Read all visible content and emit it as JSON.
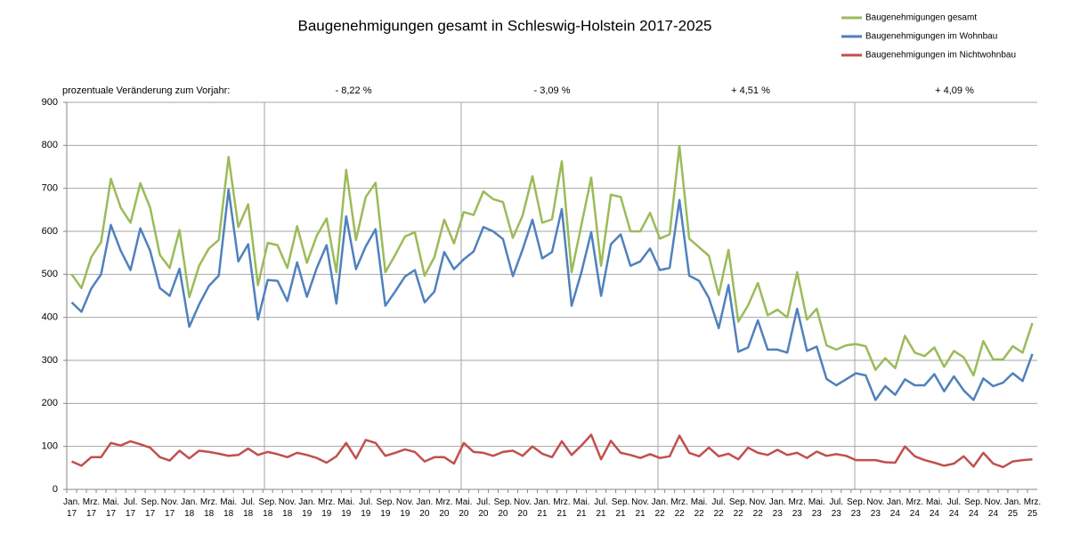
{
  "chart_data": {
    "type": "line",
    "title": "Baugenehmigungen gesamt in Schleswig-Holstein 2017-2025",
    "annotations": [
      "prozentuale Veränderung zum Vorjahr:",
      "- 8,22 %",
      "- 3,09 %",
      "+ 4,51 %",
      "+ 4,09 %"
    ],
    "categories": [
      "Jan. 17",
      null,
      "Mrz. 17",
      null,
      "Mai. 17",
      null,
      "Jul. 17",
      null,
      "Sep. 17",
      null,
      "Nov. 17",
      null,
      "Jan. 18",
      null,
      "Mrz. 18",
      null,
      "Mai. 18",
      null,
      "Jul. 18",
      null,
      "Sep. 18",
      null,
      "Nov. 18",
      null,
      "Jan. 19",
      null,
      "Mrz. 19",
      null,
      "Mai. 19",
      null,
      "Jul. 19",
      null,
      "Sep. 19",
      null,
      "Nov. 19",
      null,
      "Jan. 20",
      null,
      "Mrz. 20",
      null,
      "Mai. 20",
      null,
      "Jul. 20",
      null,
      "Sep. 20",
      null,
      "Nov. 20",
      null,
      "Jan. 21",
      null,
      "Mrz. 21",
      null,
      "Mai. 21",
      null,
      "Jul. 21",
      null,
      "Sep. 21",
      null,
      "Nov. 21",
      null,
      "Jan. 22",
      null,
      "Mrz. 22",
      null,
      "Mai. 22",
      null,
      "Jul. 22",
      null,
      "Sep. 22",
      null,
      "Nov. 22",
      null,
      "Jan. 23",
      null,
      "Mrz. 23",
      null,
      "Mai. 23",
      null,
      "Jul. 23",
      null,
      "Sep. 23",
      null,
      "Nov. 23",
      null,
      "Jan. 24",
      null,
      "Mrz. 24",
      null,
      "Mai. 24",
      null,
      "Jul. 24",
      null,
      "Sep. 24",
      null,
      "Nov. 24",
      null,
      "Jan. 25",
      null,
      "Mrz. 25"
    ],
    "series": [
      {
        "name": "Baugenehmigungen gesamt",
        "color": "#9bbb59",
        "values": [
          500,
          468,
          540,
          575,
          722,
          655,
          620,
          712,
          655,
          545,
          515,
          603,
          447,
          520,
          560,
          580,
          773,
          610,
          663,
          475,
          573,
          568,
          515,
          612,
          527,
          590,
          630,
          505,
          743,
          580,
          680,
          713,
          505,
          545,
          588,
          598,
          497,
          540,
          627,
          572,
          645,
          638,
          693,
          675,
          668,
          585,
          637,
          728,
          620,
          628,
          763,
          505,
          615,
          725,
          520,
          685,
          680,
          600,
          600,
          643,
          583,
          593,
          798,
          583,
          563,
          543,
          452,
          557,
          390,
          428,
          480,
          405,
          418,
          400,
          505,
          395,
          420,
          335,
          325,
          335,
          338,
          333,
          278,
          305,
          282,
          357,
          318,
          310,
          330,
          285,
          322,
          307,
          265,
          345,
          302,
          302,
          333,
          318,
          387
        ]
      },
      {
        "name": "Baugenehmigungen im Wohnbau",
        "color": "#4f81bd",
        "values": [
          435,
          413,
          467,
          500,
          615,
          555,
          510,
          607,
          555,
          468,
          450,
          513,
          378,
          430,
          473,
          497,
          697,
          530,
          570,
          395,
          487,
          485,
          438,
          528,
          448,
          515,
          568,
          432,
          635,
          512,
          565,
          605,
          427,
          460,
          495,
          510,
          435,
          460,
          552,
          512,
          535,
          553,
          610,
          600,
          582,
          496,
          558,
          627,
          537,
          552,
          652,
          427,
          505,
          598,
          450,
          570,
          593,
          520,
          530,
          560,
          510,
          515,
          673,
          497,
          485,
          445,
          375,
          475,
          320,
          330,
          393,
          325,
          325,
          318,
          420,
          322,
          332,
          257,
          242,
          256,
          270,
          265,
          208,
          240,
          220,
          256,
          242,
          242,
          268,
          228,
          263,
          230,
          208,
          258,
          240,
          248,
          270,
          252,
          315
        ]
      },
      {
        "name": "Baugenehmigungen im Nichtwohnbau",
        "color": "#c0504d",
        "values": [
          65,
          55,
          75,
          75,
          108,
          102,
          112,
          105,
          97,
          75,
          67,
          90,
          72,
          90,
          87,
          83,
          78,
          80,
          95,
          80,
          87,
          82,
          75,
          85,
          80,
          73,
          62,
          77,
          108,
          72,
          115,
          108,
          78,
          85,
          93,
          87,
          65,
          75,
          75,
          60,
          108,
          87,
          85,
          78,
          87,
          90,
          78,
          100,
          83,
          75,
          112,
          80,
          102,
          127,
          70,
          113,
          85,
          80,
          73,
          82,
          73,
          77,
          125,
          85,
          77,
          97,
          77,
          83,
          70,
          97,
          85,
          80,
          92,
          80,
          85,
          73,
          88,
          78,
          82,
          78,
          68,
          68,
          68,
          63,
          62,
          100,
          77,
          68,
          62,
          55,
          60,
          77,
          53,
          85,
          60,
          52,
          65,
          68,
          70
        ]
      }
    ],
    "ylim": [
      0,
      900
    ],
    "yticks": [
      0,
      100,
      200,
      300,
      400,
      500,
      600,
      700,
      800,
      900
    ],
    "grid": true
  }
}
